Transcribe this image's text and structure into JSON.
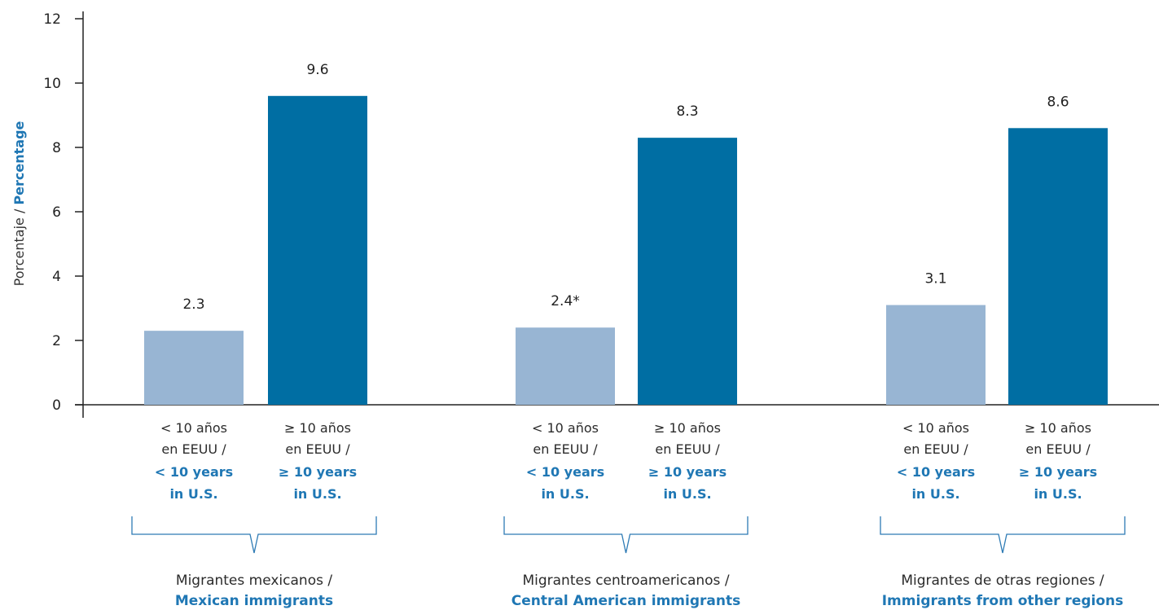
{
  "chart_data": {
    "type": "bar",
    "ylabel_es": "Porcentaje /",
    "ylabel_en": "Percentage",
    "ylim": [
      0,
      12
    ],
    "yticks": [
      "0",
      "2",
      "4",
      "6",
      "8",
      "10",
      "12"
    ],
    "colors": {
      "lt10": "#98b5d3",
      "ge10": "#006ea3",
      "en_text": "#1f77b4",
      "bracket": "#2e7bb5"
    },
    "category_labels": {
      "lt10": {
        "es1": "< 10 años",
        "es2": "en EEUU /",
        "en1": "< 10 years",
        "en2": "in U.S."
      },
      "ge10": {
        "es1": "≥ 10 años",
        "es2": "en EEUU /",
        "en1": "≥ 10 years",
        "en2": "in U.S."
      }
    },
    "groups": [
      {
        "name_es": "Migrantes mexicanos /",
        "name_en": "Mexican immigrants",
        "bars": [
          {
            "key": "lt10",
            "value": 2.3,
            "label": "2.3"
          },
          {
            "key": "ge10",
            "value": 9.6,
            "label": "9.6"
          }
        ]
      },
      {
        "name_es": "Migrantes centroamericanos /",
        "name_en": "Central American immigrants",
        "bars": [
          {
            "key": "lt10",
            "value": 2.4,
            "label": "2.4*"
          },
          {
            "key": "ge10",
            "value": 8.3,
            "label": "8.3"
          }
        ]
      },
      {
        "name_es": "Migrantes de otras regiones /",
        "name_en": "Immigrants from other regions",
        "bars": [
          {
            "key": "lt10",
            "value": 3.1,
            "label": "3.1"
          },
          {
            "key": "ge10",
            "value": 8.6,
            "label": "8.6"
          }
        ]
      }
    ]
  }
}
